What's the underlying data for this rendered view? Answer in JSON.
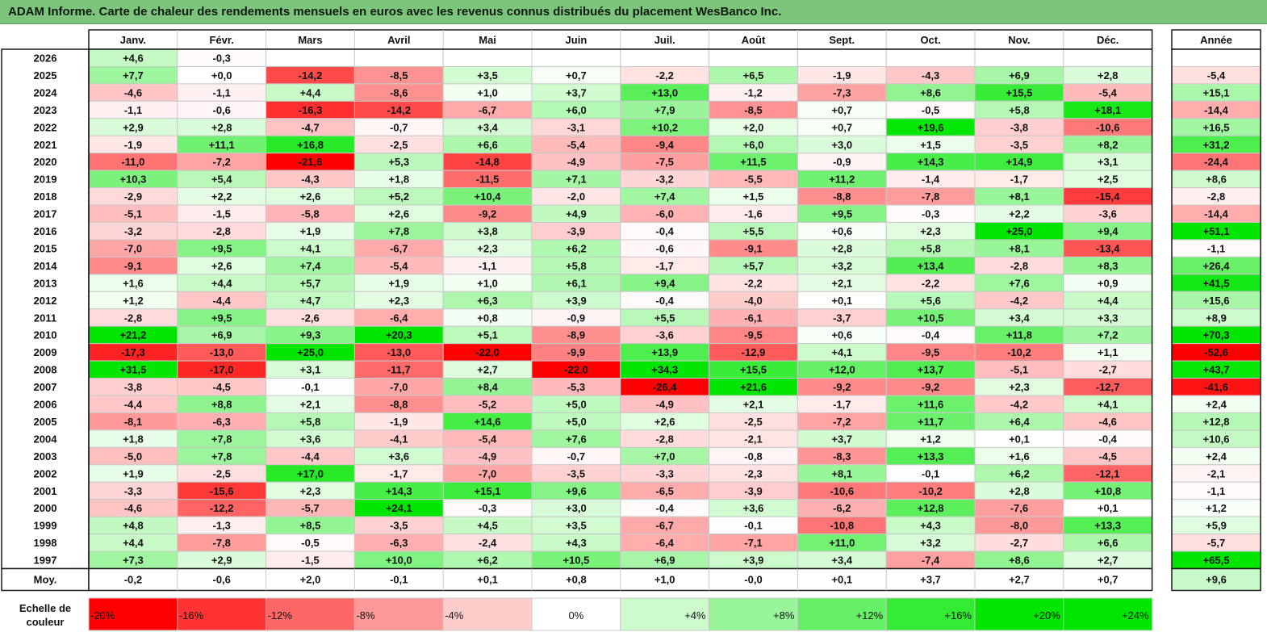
{
  "title": "ADAM Informe. Carte de chaleur des rendements mensuels en euros avec les revenus connus distribués du placement WesBanco Inc.",
  "chart_data": {
    "type": "heatmap",
    "months": [
      "Janv.",
      "Févr.",
      "Mars",
      "Avril",
      "Mai",
      "Juin",
      "Juil.",
      "Août",
      "Sept.",
      "Oct.",
      "Nov.",
      "Déc."
    ],
    "year_header": "Année",
    "avg_label": "Moy.",
    "rows": [
      {
        "year": "2026",
        "values": [
          "+4,6",
          "-0,3",
          "",
          "",
          "",
          "",
          "",
          "",
          "",
          "",
          "",
          ""
        ],
        "annual": ""
      },
      {
        "year": "2025",
        "values": [
          "+7,7",
          "+0,0",
          "-14,2",
          "-8,5",
          "+3,5",
          "+0,7",
          "-2,2",
          "+6,5",
          "-1,9",
          "-4,3",
          "+6,9",
          "+2,8"
        ],
        "annual": "-5,4"
      },
      {
        "year": "2024",
        "values": [
          "-4,6",
          "-1,1",
          "+4,4",
          "-8,6",
          "+1,0",
          "+3,7",
          "+13,0",
          "-1,2",
          "-7,3",
          "+8,6",
          "+15,5",
          "-5,4"
        ],
        "annual": "+15,1"
      },
      {
        "year": "2023",
        "values": [
          "-1,1",
          "-0,6",
          "-16,3",
          "-14,2",
          "-6,7",
          "+6,0",
          "+7,9",
          "-8,5",
          "+0,7",
          "-0,5",
          "+5,8",
          "+18,1"
        ],
        "annual": "-14,4"
      },
      {
        "year": "2022",
        "values": [
          "+2,9",
          "+2,8",
          "-4,7",
          "-0,7",
          "+3,4",
          "-3,1",
          "+10,2",
          "+2,0",
          "+0,7",
          "+19,6",
          "-3,8",
          "-10,6"
        ],
        "annual": "+16,5"
      },
      {
        "year": "2021",
        "values": [
          "-1,9",
          "+11,1",
          "+16,8",
          "-2,5",
          "+6,6",
          "-5,4",
          "-9,4",
          "+6,0",
          "+3,0",
          "+1,5",
          "-3,5",
          "+8,2"
        ],
        "annual": "+31,2"
      },
      {
        "year": "2020",
        "values": [
          "-11,0",
          "-7,2",
          "-21,6",
          "+5,3",
          "-14,8",
          "-4,9",
          "-7,5",
          "+11,5",
          "-0,9",
          "+14,3",
          "+14,9",
          "+3,1"
        ],
        "annual": "-24,4"
      },
      {
        "year": "2019",
        "values": [
          "+10,3",
          "+5,4",
          "-4,3",
          "+1,8",
          "-11,5",
          "+7,1",
          "-3,2",
          "-5,5",
          "+11,2",
          "-1,4",
          "-1,7",
          "+2,5"
        ],
        "annual": "+8,6"
      },
      {
        "year": "2018",
        "values": [
          "-2,9",
          "+2,2",
          "+2,6",
          "+5,2",
          "+10,4",
          "-2,0",
          "+7,4",
          "+1,5",
          "-8,8",
          "-7,8",
          "+8,1",
          "-15,4"
        ],
        "annual": "-2,8"
      },
      {
        "year": "2017",
        "values": [
          "-5,1",
          "-1,5",
          "-5,8",
          "+2,6",
          "-9,2",
          "+4,9",
          "-6,0",
          "-1,6",
          "+9,5",
          "-0,3",
          "+2,2",
          "-3,6"
        ],
        "annual": "-14,4"
      },
      {
        "year": "2016",
        "values": [
          "-3,2",
          "-2,8",
          "+1,9",
          "+7,8",
          "+3,8",
          "-3,9",
          "-0,4",
          "+5,5",
          "+0,6",
          "+2,3",
          "+25,0",
          "+9,4"
        ],
        "annual": "+51,1"
      },
      {
        "year": "2015",
        "values": [
          "-7,0",
          "+9,5",
          "+4,1",
          "-6,7",
          "+2,3",
          "+6,2",
          "-0,6",
          "-9,1",
          "+2,8",
          "+5,8",
          "+8,1",
          "-13,4"
        ],
        "annual": "-1,1"
      },
      {
        "year": "2014",
        "values": [
          "-9,1",
          "+2,6",
          "+7,4",
          "-5,4",
          "-1,1",
          "+5,8",
          "-1,7",
          "+5,7",
          "+3,2",
          "+13,4",
          "-2,8",
          "+8,3"
        ],
        "annual": "+26,4"
      },
      {
        "year": "2013",
        "values": [
          "+1,6",
          "+4,4",
          "+5,7",
          "+1,9",
          "+1,0",
          "+6,1",
          "+9,4",
          "-2,2",
          "+2,1",
          "-2,2",
          "+7,6",
          "+0,9"
        ],
        "annual": "+41,5"
      },
      {
        "year": "2012",
        "values": [
          "+1,2",
          "-4,4",
          "+4,7",
          "+2,3",
          "+6,3",
          "+3,9",
          "-0,4",
          "-4,0",
          "+0,1",
          "+5,6",
          "-4,2",
          "+4,4"
        ],
        "annual": "+15,6"
      },
      {
        "year": "2011",
        "values": [
          "-2,8",
          "+9,5",
          "-2,6",
          "-6,4",
          "+0,8",
          "-0,9",
          "+5,5",
          "-6,1",
          "-3,7",
          "+10,5",
          "+3,4",
          "+3,3"
        ],
        "annual": "+8,9"
      },
      {
        "year": "2010",
        "values": [
          "+21,2",
          "+6,9",
          "+9,3",
          "+20,3",
          "+5,1",
          "-8,9",
          "-3,6",
          "-9,5",
          "+0,6",
          "-0,4",
          "+11,8",
          "+7,2"
        ],
        "annual": "+70,3"
      },
      {
        "year": "2009",
        "values": [
          "-17,3",
          "-13,0",
          "+25,0",
          "-13,0",
          "-22,0",
          "-9,9",
          "+13,9",
          "-12,9",
          "+4,1",
          "-9,5",
          "-10,2",
          "+1,1"
        ],
        "annual": "-52,6"
      },
      {
        "year": "2008",
        "values": [
          "+31,5",
          "-17,0",
          "+3,1",
          "-11,7",
          "+2,7",
          "-22,0",
          "+34,3",
          "+15,5",
          "+12,0",
          "+13,7",
          "-5,1",
          "-2,7"
        ],
        "annual": "+43,7"
      },
      {
        "year": "2007",
        "values": [
          "-3,8",
          "-4,5",
          "-0,1",
          "-7,0",
          "+8,4",
          "-5,3",
          "-26,4",
          "+21,6",
          "-9,2",
          "-9,2",
          "+2,3",
          "-12,7"
        ],
        "annual": "-41,6"
      },
      {
        "year": "2006",
        "values": [
          "-4,4",
          "+8,8",
          "+2,1",
          "-8,8",
          "-5,2",
          "+5,0",
          "-4,9",
          "+2,1",
          "-1,7",
          "+11,6",
          "-4,2",
          "+4,1"
        ],
        "annual": "+2,4"
      },
      {
        "year": "2005",
        "values": [
          "-8,1",
          "-6,3",
          "+5,8",
          "-1,9",
          "+14,6",
          "+5,0",
          "+2,6",
          "-2,5",
          "-7,2",
          "+11,7",
          "+6,4",
          "-4,6"
        ],
        "annual": "+12,8"
      },
      {
        "year": "2004",
        "values": [
          "+1,8",
          "+7,8",
          "+3,6",
          "-4,1",
          "-5,4",
          "+7,6",
          "-2,8",
          "-2,1",
          "+3,7",
          "+1,2",
          "+0,1",
          "-0,4"
        ],
        "annual": "+10,6"
      },
      {
        "year": "2003",
        "values": [
          "-5,0",
          "+7,8",
          "-4,4",
          "+3,6",
          "-4,9",
          "-0,7",
          "+7,0",
          "-0,8",
          "-8,3",
          "+13,3",
          "+1,6",
          "-4,5"
        ],
        "annual": "+2,4"
      },
      {
        "year": "2002",
        "values": [
          "+1,9",
          "-2,5",
          "+17,0",
          "-1,7",
          "-7,0",
          "-3,5",
          "-3,3",
          "-2,3",
          "+8,1",
          "-0,1",
          "+6,2",
          "-12,1"
        ],
        "annual": "-2,1"
      },
      {
        "year": "2001",
        "values": [
          "-3,3",
          "-15,6",
          "+2,3",
          "+14,3",
          "+15,1",
          "+9,6",
          "-6,5",
          "-3,9",
          "-10,6",
          "-10,2",
          "+2,8",
          "+10,8"
        ],
        "annual": "-1,1"
      },
      {
        "year": "2000",
        "values": [
          "-4,6",
          "-12,2",
          "-5,7",
          "+24,1",
          "-0,3",
          "+3,0",
          "-0,4",
          "+3,6",
          "-6,2",
          "+12,8",
          "-7,6",
          "+0,1"
        ],
        "annual": "+1,2"
      },
      {
        "year": "1999",
        "values": [
          "+4,8",
          "-1,3",
          "+8,5",
          "-3,5",
          "+4,5",
          "+3,5",
          "-6,7",
          "-0,1",
          "-10,8",
          "+4,3",
          "-8,0",
          "+13,3"
        ],
        "annual": "+5,9"
      },
      {
        "year": "1998",
        "values": [
          "+4,4",
          "-7,8",
          "-0,5",
          "-6,3",
          "-2,4",
          "+4,3",
          "-6,4",
          "-7,1",
          "+11,0",
          "+3,2",
          "-2,7",
          "+6,6"
        ],
        "annual": "-5,7"
      },
      {
        "year": "1997",
        "values": [
          "+7,3",
          "+2,9",
          "-1,5",
          "+10,0",
          "+6,2",
          "+10,5",
          "+6,9",
          "+3,9",
          "+3,4",
          "-7,4",
          "+8,6",
          "+2,7"
        ],
        "annual": "+65,5"
      }
    ],
    "averages": [
      "-0,2",
      "-0,6",
      "+2,0",
      "-0,1",
      "+0,1",
      "+0,8",
      "+1,0",
      "-0,0",
      "+0,1",
      "+3,7",
      "+2,7",
      "+0,7"
    ],
    "average_annual": "+9,6",
    "scale_label": "Echelle de couleur",
    "scale": [
      {
        "label": "-20%",
        "value": -20
      },
      {
        "label": "-16%",
        "value": -16
      },
      {
        "label": "-12%",
        "value": -12
      },
      {
        "label": "-8%",
        "value": -8
      },
      {
        "label": "-4%",
        "value": -4
      },
      {
        "label": "0%",
        "value": 0
      },
      {
        "label": "+4%",
        "value": 4
      },
      {
        "label": "+8%",
        "value": 8
      },
      {
        "label": "+12%",
        "value": 12
      },
      {
        "label": "+16%",
        "value": 16
      },
      {
        "label": "+20%",
        "value": 20
      },
      {
        "label": "+24%",
        "value": 24
      }
    ]
  },
  "colors": {
    "negative_max": "#ff0000",
    "positive_max": "#00e600",
    "neutral": "#ffffff",
    "title_bg": "#7dc57d",
    "grid": "#c8c8c8",
    "border": "#1a1a1a"
  }
}
